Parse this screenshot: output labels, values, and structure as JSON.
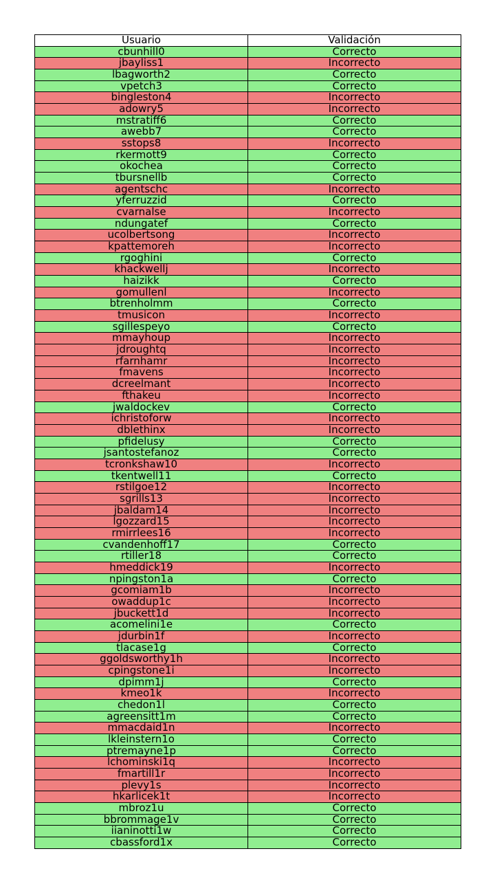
{
  "chart_data": {
    "type": "table",
    "columns": [
      "Usuario",
      "Validación"
    ],
    "colors": {
      "Correcto": "#90ee90",
      "Incorrecto": "#f08080",
      "header": "#ffffff"
    },
    "rows": [
      [
        "cbunhill0",
        "Correcto"
      ],
      [
        "jbayliss1",
        "Incorrecto"
      ],
      [
        "lbagworth2",
        "Correcto"
      ],
      [
        "vpetch3",
        "Correcto"
      ],
      [
        "bingleston4",
        "Incorrecto"
      ],
      [
        "adowry5",
        "Incorrecto"
      ],
      [
        "mstratiff6",
        "Correcto"
      ],
      [
        "awebb7",
        "Correcto"
      ],
      [
        "sstops8",
        "Incorrecto"
      ],
      [
        "rkermott9",
        "Correcto"
      ],
      [
        "okochea",
        "Correcto"
      ],
      [
        "tbursnellb",
        "Correcto"
      ],
      [
        "agentschc",
        "Incorrecto"
      ],
      [
        "yferruzzid",
        "Correcto"
      ],
      [
        "cvarnalse",
        "Incorrecto"
      ],
      [
        "ndungatef",
        "Correcto"
      ],
      [
        "ucolbertsong",
        "Incorrecto"
      ],
      [
        "kpattemoreh",
        "Incorrecto"
      ],
      [
        "rgoghini",
        "Correcto"
      ],
      [
        "khackwellj",
        "Incorrecto"
      ],
      [
        "haizikk",
        "Correcto"
      ],
      [
        "gomullenl",
        "Incorrecto"
      ],
      [
        "btrenholmm",
        "Correcto"
      ],
      [
        "tmusicon",
        "Incorrecto"
      ],
      [
        "sgillespeyo",
        "Correcto"
      ],
      [
        "mmayhoup",
        "Incorrecto"
      ],
      [
        "jdroughtq",
        "Incorrecto"
      ],
      [
        "rfarnhamr",
        "Incorrecto"
      ],
      [
        "fmavens",
        "Incorrecto"
      ],
      [
        "dcreelmant",
        "Incorrecto"
      ],
      [
        "fthakeu",
        "Incorrecto"
      ],
      [
        "jwaldockev",
        "Correcto"
      ],
      [
        "ichristoforw",
        "Incorrecto"
      ],
      [
        "dblethinx",
        "Incorrecto"
      ],
      [
        "pfidelusy",
        "Correcto"
      ],
      [
        "jsantostefanoz",
        "Correcto"
      ],
      [
        "tcronkshaw10",
        "Incorrecto"
      ],
      [
        "tkentwell11",
        "Correcto"
      ],
      [
        "rstilgoe12",
        "Incorrecto"
      ],
      [
        "sgrills13",
        "Incorrecto"
      ],
      [
        "jbaldam14",
        "Incorrecto"
      ],
      [
        "lgozzard15",
        "Incorrecto"
      ],
      [
        "rmirrlees16",
        "Incorrecto"
      ],
      [
        "cvandenhoff17",
        "Correcto"
      ],
      [
        "rtiller18",
        "Correcto"
      ],
      [
        "hmeddick19",
        "Incorrecto"
      ],
      [
        "npingston1a",
        "Correcto"
      ],
      [
        "gcomiam1b",
        "Incorrecto"
      ],
      [
        "owaddup1c",
        "Incorrecto"
      ],
      [
        "jbuckett1d",
        "Incorrecto"
      ],
      [
        "acomelini1e",
        "Correcto"
      ],
      [
        "jdurbin1f",
        "Incorrecto"
      ],
      [
        "tlacase1g",
        "Correcto"
      ],
      [
        "ggoldsworthy1h",
        "Incorrecto"
      ],
      [
        "cpingstone1i",
        "Incorrecto"
      ],
      [
        "dpimm1j",
        "Correcto"
      ],
      [
        "kmeo1k",
        "Incorrecto"
      ],
      [
        "chedon1l",
        "Correcto"
      ],
      [
        "agreensitt1m",
        "Correcto"
      ],
      [
        "mmacdaid1n",
        "Incorrecto"
      ],
      [
        "lkleinstern1o",
        "Correcto"
      ],
      [
        "ptremayne1p",
        "Correcto"
      ],
      [
        "lchominski1q",
        "Incorrecto"
      ],
      [
        "fmartill1r",
        "Incorrecto"
      ],
      [
        "plevy1s",
        "Incorrecto"
      ],
      [
        "hkarlicek1t",
        "Incorrecto"
      ],
      [
        "mbroz1u",
        "Correcto"
      ],
      [
        "bbrommage1v",
        "Correcto"
      ],
      [
        "iianinotti1w",
        "Correcto"
      ],
      [
        "cbassford1x",
        "Correcto"
      ]
    ]
  }
}
